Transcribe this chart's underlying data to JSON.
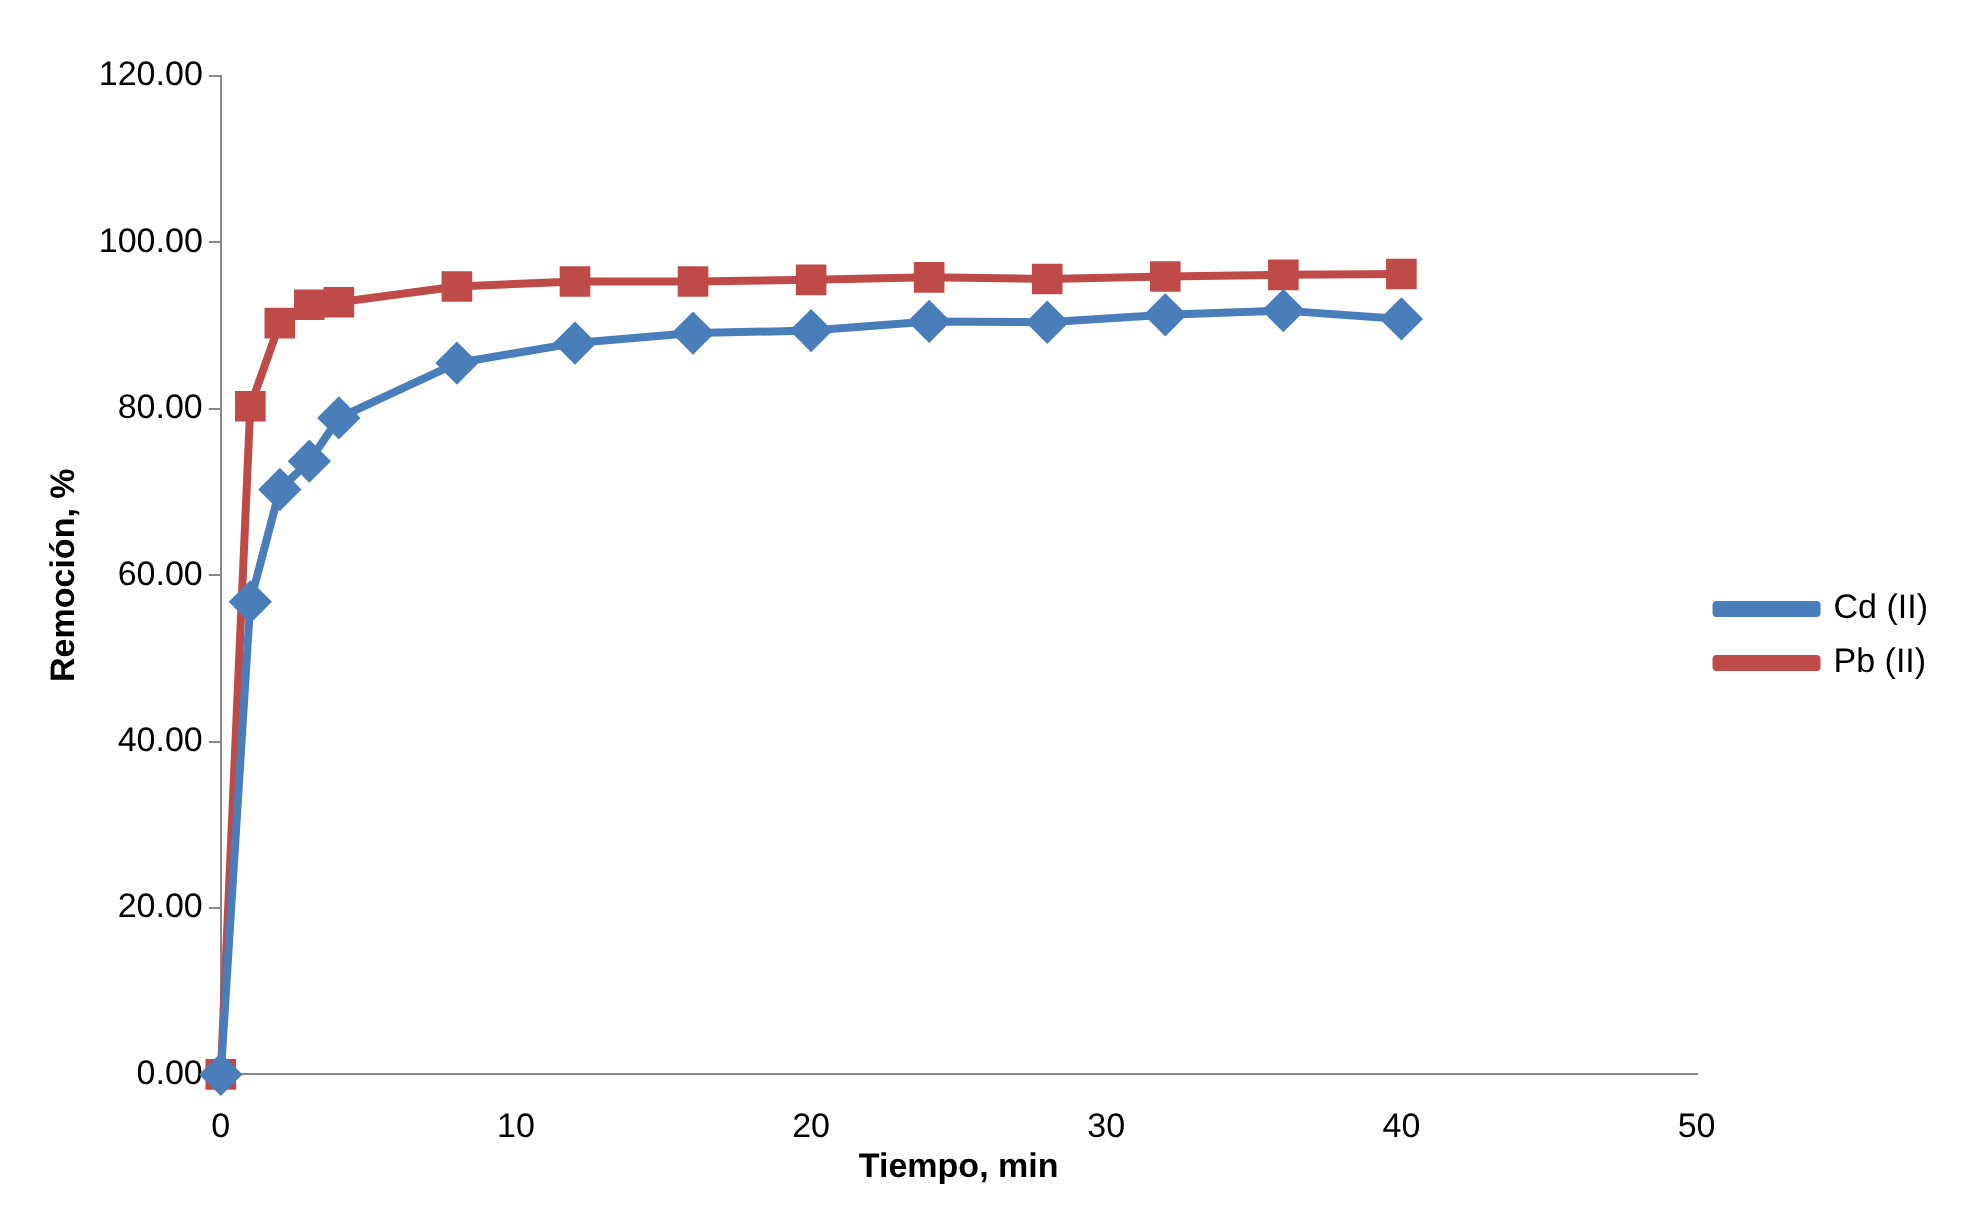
{
  "chart_data": {
    "type": "line",
    "xlabel": "Tiempo, min",
    "ylabel": "Remoción, %",
    "x": [
      0,
      1,
      2,
      3,
      4,
      8,
      12,
      16,
      20,
      24,
      28,
      32,
      36,
      40
    ],
    "series": [
      {
        "name": "Cd (II)",
        "color": "#4a7ebb",
        "marker": "diamond",
        "values": [
          0,
          56.8,
          70.3,
          73.7,
          78.9,
          85.5,
          87.9,
          89.1,
          89.4,
          90.5,
          90.4,
          91.3,
          91.8,
          90.8
        ]
      },
      {
        "name": "Pb (II)",
        "color": "#be4b48",
        "marker": "square",
        "values": [
          0,
          80.3,
          90.3,
          92.5,
          92.8,
          94.7,
          95.3,
          95.3,
          95.5,
          95.8,
          95.6,
          95.9,
          96.1,
          96.2
        ]
      }
    ],
    "xlim": [
      0,
      50
    ],
    "xticks": [
      0,
      10,
      20,
      30,
      40,
      50
    ],
    "ylim": [
      0,
      120
    ],
    "yticks": [
      {
        "value": 0,
        "label": "0.00"
      },
      {
        "value": 20,
        "label": "20.00"
      },
      {
        "value": 40,
        "label": "40.00"
      },
      {
        "value": 60,
        "label": "60.00"
      },
      {
        "value": 80,
        "label": "80.00"
      },
      {
        "value": 100,
        "label": "100.00"
      },
      {
        "value": 120,
        "label": "120.00"
      }
    ],
    "grid": false,
    "legend": "right"
  }
}
